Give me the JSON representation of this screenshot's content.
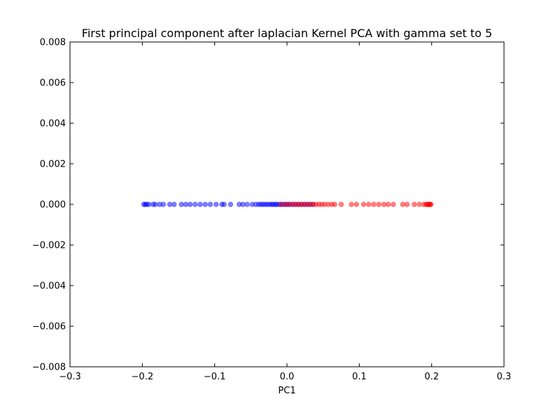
{
  "chart_data": {
    "type": "scatter",
    "title": "First principal component after laplacian Kernel PCA with gamma set to 5",
    "xlabel": "PC1",
    "ylabel": "",
    "xlim": [
      -0.3,
      0.3
    ],
    "ylim": [
      -0.008,
      0.008
    ],
    "x_ticks": [
      "−0.3",
      "−0.2",
      "−0.1",
      "0.0",
      "0.1",
      "0.2",
      "0.3"
    ],
    "y_ticks": [
      "−0.008",
      "−0.006",
      "−0.004",
      "−0.002",
      "0.000",
      "0.002",
      "0.004",
      "0.006",
      "0.008"
    ],
    "x_tick_values": [
      -0.3,
      -0.2,
      -0.1,
      0.0,
      0.1,
      0.2,
      0.3
    ],
    "y_tick_values": [
      -0.008,
      -0.006,
      -0.004,
      -0.002,
      0.0,
      0.002,
      0.004,
      0.006,
      0.008
    ],
    "grid": false,
    "series": [
      {
        "color": "#0000ff",
        "opacity": 0.5,
        "x": [
          -0.198,
          -0.196,
          -0.194,
          -0.191,
          -0.185,
          -0.182,
          -0.176,
          -0.171,
          -0.162,
          -0.156,
          -0.146,
          -0.14,
          -0.134,
          -0.127,
          -0.12,
          -0.113,
          -0.106,
          -0.098,
          -0.09,
          -0.087,
          -0.078,
          -0.066,
          -0.061,
          -0.055,
          -0.048,
          -0.043,
          -0.039,
          -0.036,
          -0.033,
          -0.03,
          -0.027,
          -0.024,
          -0.021,
          -0.019,
          -0.016,
          -0.014,
          -0.011,
          -0.008,
          -0.005,
          -0.002,
          0.001,
          0.004,
          0.008,
          0.012,
          0.016,
          0.02,
          0.024,
          0.028,
          0.032,
          0.036
        ],
        "y": [
          0,
          0,
          0,
          0,
          0,
          0,
          0,
          0,
          0,
          0,
          0,
          0,
          0,
          0,
          0,
          0,
          0,
          0,
          0,
          0,
          0,
          0,
          0,
          0,
          0,
          0,
          0,
          0,
          0,
          0,
          0,
          0,
          0,
          0,
          0,
          0,
          0,
          0,
          0,
          0,
          0,
          0,
          0,
          0,
          0,
          0,
          0,
          0,
          0,
          0
        ]
      },
      {
        "color": "#ff0000",
        "opacity": 0.5,
        "x": [
          -0.008,
          -0.002,
          0.003,
          0.008,
          0.012,
          0.016,
          0.02,
          0.024,
          0.028,
          0.032,
          0.036,
          0.04,
          0.044,
          0.048,
          0.052,
          0.057,
          0.062,
          0.066,
          0.075,
          0.089,
          0.096,
          0.106,
          0.113,
          0.12,
          0.127,
          0.134,
          0.14,
          0.147,
          0.16,
          0.166,
          0.176,
          0.183,
          0.189,
          0.192,
          0.194,
          0.195,
          0.196,
          0.197,
          0.198,
          0.199
        ],
        "y": [
          0,
          0,
          0,
          0,
          0,
          0,
          0,
          0,
          0,
          0,
          0,
          0,
          0,
          0,
          0,
          0,
          0,
          0,
          0,
          0,
          0,
          0,
          0,
          0,
          0,
          0,
          0,
          0,
          0,
          0,
          0,
          0,
          0,
          0,
          0,
          0,
          0,
          0,
          0,
          0
        ]
      }
    ]
  }
}
